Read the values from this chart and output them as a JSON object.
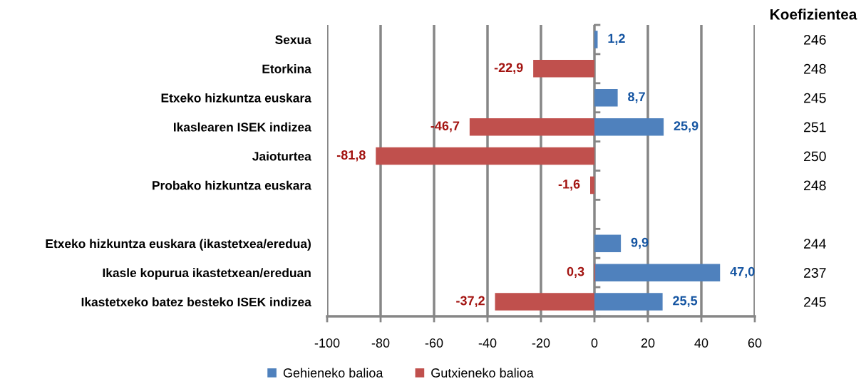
{
  "chart_data": {
    "type": "bar",
    "orientation": "horizontal",
    "categories": [
      "Sexua",
      "Etorkina",
      "Etxeko hizkuntza euskara",
      "Ikaslearen ISEK indizea",
      "Jaioturtea",
      "Probako hizkuntza euskara",
      null,
      "Etxeko hizkuntza euskara (ikastetxea/eredua)",
      "Ikasle kopurua ikastetxean/ereduan",
      "Ikastetxeko batez besteko ISEK indizea"
    ],
    "y2_categories": [
      "246",
      "248",
      "245",
      "251",
      "250",
      "248",
      null,
      "244",
      "237",
      "245"
    ],
    "y2label": "Koefizientea",
    "series": [
      {
        "name": "Gehieneko balioa",
        "color": "#4f81bd",
        "values": [
          1.2,
          null,
          8.7,
          25.9,
          null,
          null,
          null,
          9.9,
          47.0,
          25.5
        ],
        "value_labels": [
          "1,2",
          null,
          "8,7",
          "25,9",
          null,
          null,
          null,
          "9,9",
          "47,0",
          "25,5"
        ]
      },
      {
        "name": "Gutxieneko balioa",
        "color": "#c0504d",
        "values": [
          null,
          -22.9,
          null,
          -46.7,
          -81.8,
          -1.6,
          null,
          null,
          0.3,
          -37.2
        ],
        "value_labels": [
          null,
          "-22,9",
          null,
          "-46,7",
          "-81,8",
          "-1,6",
          null,
          null,
          "0,3",
          "-37,2"
        ]
      }
    ],
    "xlim": [
      -100,
      60
    ],
    "xticks": [
      -100,
      -80,
      -60,
      -40,
      -20,
      0,
      20,
      40,
      60
    ],
    "grid": "x",
    "legend": "bottom"
  }
}
